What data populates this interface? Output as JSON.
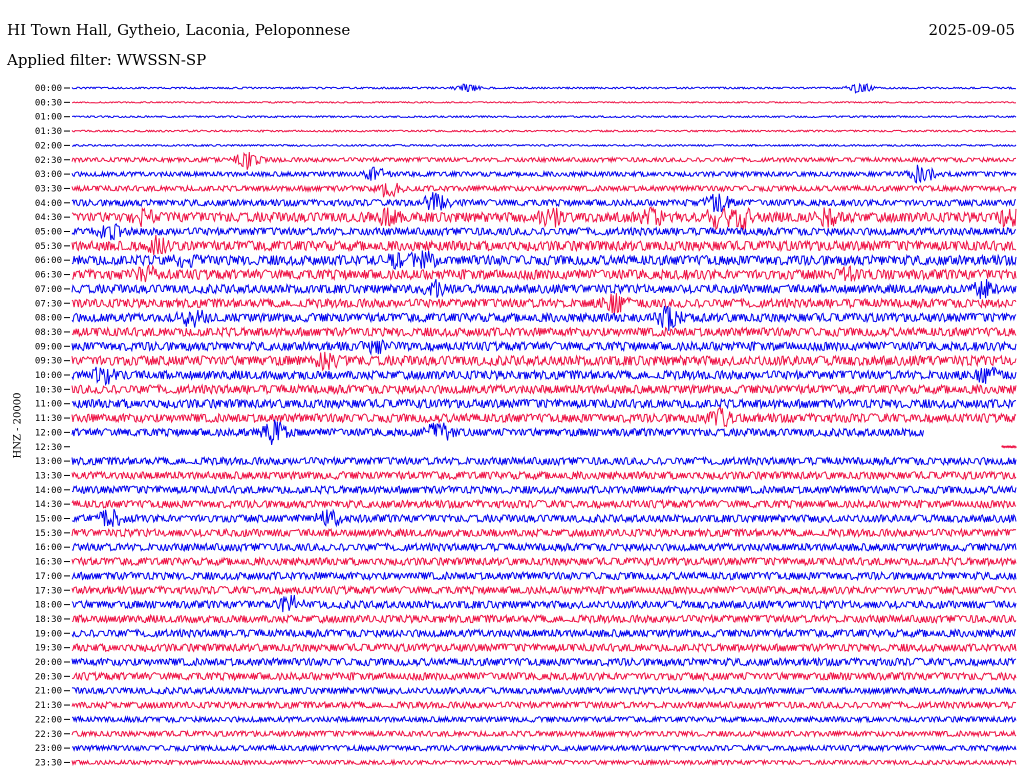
{
  "header": {
    "station": "HI Town Hall, Gytheio, Laconia, Peloponnese",
    "date": "2025-09-05",
    "filter": "Applied filter: WWSSN-SP",
    "ylabel": "HNZ - 20000"
  },
  "colors": {
    "even_row": "#0000ee",
    "odd_row": "#ee1144",
    "axis": "#000000"
  },
  "chart_data": {
    "type": "line",
    "title": "HI Town Hall, Gytheio, Laconia, Peloponnese",
    "ylabel": "HNZ - 20000",
    "row_labels": [
      "00:00",
      "00:30",
      "01:00",
      "01:30",
      "02:00",
      "02:30",
      "03:00",
      "03:30",
      "04:00",
      "04:30",
      "05:00",
      "05:30",
      "06:00",
      "06:30",
      "07:00",
      "07:30",
      "08:00",
      "08:30",
      "09:00",
      "09:30",
      "10:00",
      "10:30",
      "11:00",
      "11:30",
      "12:00",
      "12:30",
      "13:00",
      "13:30",
      "14:00",
      "14:30",
      "15:00",
      "15:30",
      "16:00",
      "16:30",
      "17:00",
      "17:30",
      "18:00",
      "18:30",
      "19:00",
      "19:30",
      "20:00",
      "20:30",
      "21:00",
      "21:30",
      "22:00",
      "22:30",
      "23:00",
      "23:30"
    ],
    "row_noise_level": [
      0.08,
      0.06,
      0.08,
      0.08,
      0.08,
      0.2,
      0.22,
      0.25,
      0.3,
      0.45,
      0.35,
      0.45,
      0.45,
      0.45,
      0.4,
      0.4,
      0.4,
      0.4,
      0.4,
      0.45,
      0.4,
      0.4,
      0.4,
      0.4,
      0.35,
      0.05,
      0.35,
      0.35,
      0.35,
      0.35,
      0.35,
      0.35,
      0.35,
      0.35,
      0.35,
      0.35,
      0.35,
      0.35,
      0.35,
      0.35,
      0.35,
      0.35,
      0.3,
      0.3,
      0.25,
      0.25,
      0.25,
      0.2
    ],
    "row_coverage": [
      1,
      1,
      1,
      1,
      1,
      1,
      1,
      1,
      1,
      1,
      1,
      1,
      1,
      1,
      1,
      1,
      1,
      1,
      1,
      1,
      1,
      1,
      1,
      1,
      0.902,
      0.015,
      1,
      1,
      1,
      1,
      1,
      1,
      1,
      1,
      1,
      1,
      1,
      1,
      1,
      1,
      1,
      1,
      1,
      1,
      1,
      1,
      1,
      1
    ],
    "events": [
      {
        "row": 0,
        "t": 0.419,
        "amp": 0.5
      },
      {
        "row": 0,
        "t": 0.835,
        "amp": 0.6
      },
      {
        "row": 5,
        "t": 0.185,
        "amp": 1.0
      },
      {
        "row": 6,
        "t": 0.321,
        "amp": 0.7
      },
      {
        "row": 6,
        "t": 0.9,
        "amp": 1.0
      },
      {
        "row": 7,
        "t": 0.335,
        "amp": 0.9
      },
      {
        "row": 8,
        "t": 0.385,
        "amp": 1.0
      },
      {
        "row": 8,
        "t": 0.685,
        "amp": 1.0
      },
      {
        "row": 9,
        "t": 0.075,
        "amp": 0.8
      },
      {
        "row": 9,
        "t": 0.335,
        "amp": 0.8
      },
      {
        "row": 9,
        "t": 0.507,
        "amp": 1.0
      },
      {
        "row": 9,
        "t": 0.613,
        "amp": 1.1
      },
      {
        "row": 9,
        "t": 0.685,
        "amp": 1.0
      },
      {
        "row": 9,
        "t": 0.708,
        "amp": 1.1
      },
      {
        "row": 9,
        "t": 0.8,
        "amp": 0.9
      },
      {
        "row": 9,
        "t": 0.995,
        "amp": 1.0
      },
      {
        "row": 10,
        "t": 0.04,
        "amp": 0.8
      },
      {
        "row": 11,
        "t": 0.09,
        "amp": 1.0
      },
      {
        "row": 12,
        "t": 0.12,
        "amp": 0.8
      },
      {
        "row": 12,
        "t": 0.345,
        "amp": 0.8
      },
      {
        "row": 12,
        "t": 0.372,
        "amp": 1.0
      },
      {
        "row": 13,
        "t": 0.08,
        "amp": 0.8
      },
      {
        "row": 13,
        "t": 0.82,
        "amp": 0.6
      },
      {
        "row": 14,
        "t": 0.385,
        "amp": 0.8
      },
      {
        "row": 14,
        "t": 0.965,
        "amp": 0.9
      },
      {
        "row": 15,
        "t": 0.575,
        "amp": 0.9
      },
      {
        "row": 16,
        "t": 0.127,
        "amp": 1.1
      },
      {
        "row": 16,
        "t": 0.631,
        "amp": 1.2
      },
      {
        "row": 18,
        "t": 0.322,
        "amp": 0.6
      },
      {
        "row": 19,
        "t": 0.27,
        "amp": 1.0
      },
      {
        "row": 20,
        "t": 0.034,
        "amp": 0.8
      },
      {
        "row": 20,
        "t": 0.97,
        "amp": 0.7
      },
      {
        "row": 23,
        "t": 0.686,
        "amp": 1.0
      },
      {
        "row": 24,
        "t": 0.214,
        "amp": 1.2
      },
      {
        "row": 24,
        "t": 0.388,
        "amp": 1.2
      },
      {
        "row": 30,
        "t": 0.04,
        "amp": 0.9
      },
      {
        "row": 30,
        "t": 0.273,
        "amp": 1.0
      },
      {
        "row": 36,
        "t": 0.232,
        "amp": 0.9
      }
    ]
  }
}
